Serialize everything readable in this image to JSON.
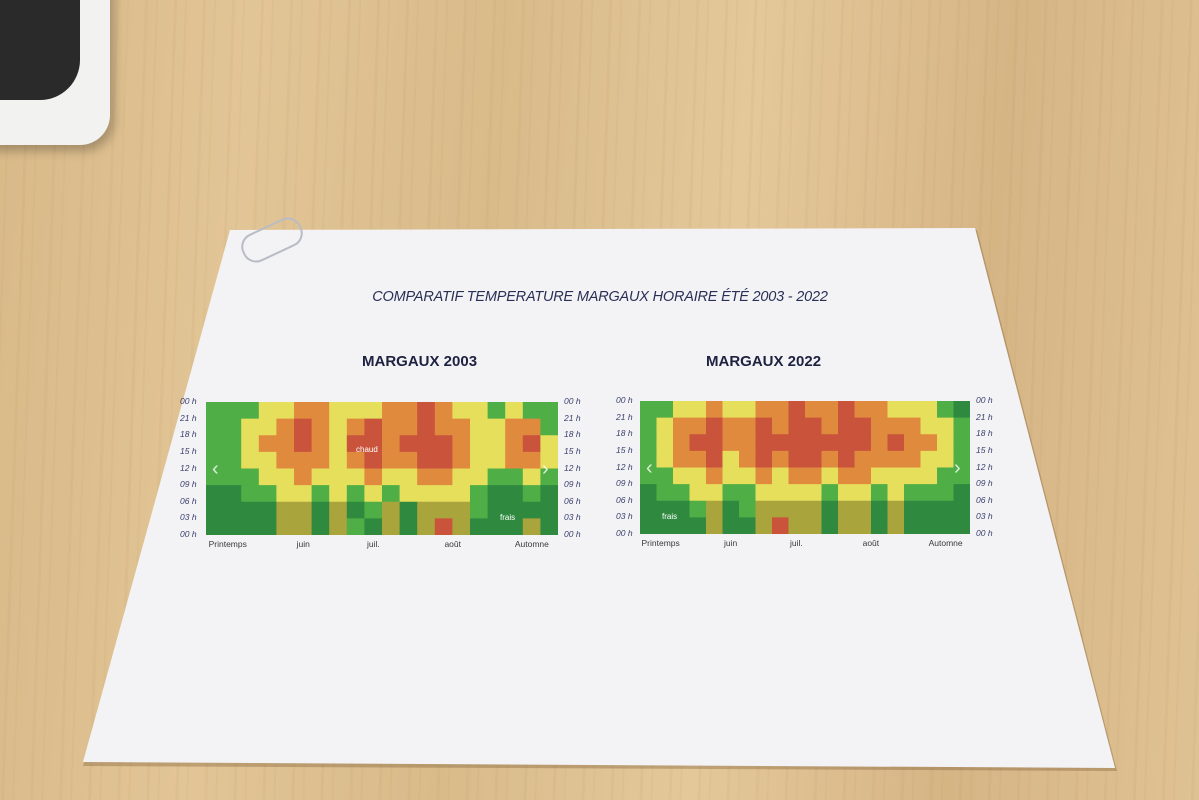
{
  "document": {
    "title": "COMPARATIF TEMPERATURE MARGAUX HORAIRE ÉTÉ 2003 - 2022"
  },
  "colors": {
    "class_0": "#2f8a3f",
    "class_1": "#4fae46",
    "class_2": "#a9a43c",
    "class_3": "#e6df5c",
    "class_4": "#e08a3e",
    "class_5": "#c9533b"
  },
  "chart_data": [
    {
      "type": "heatmap",
      "title": "MARGAUX 2003",
      "x_tick_labels": [
        "Printemps",
        "juin",
        "juil.",
        "août",
        "Automne"
      ],
      "y_tick_labels": [
        "00 h",
        "03 h",
        "06 h",
        "09 h",
        "12 h",
        "15 h",
        "18 h",
        "21 h",
        "00 h"
      ],
      "annotations": [
        "chaud",
        "frais"
      ],
      "rows_top_to_bottom": [
        [
          1,
          1,
          1,
          3,
          3,
          4,
          4,
          3,
          3,
          3,
          4,
          4,
          5,
          4,
          3,
          3,
          1,
          3,
          1,
          1
        ],
        [
          1,
          1,
          3,
          3,
          4,
          5,
          4,
          3,
          4,
          5,
          4,
          4,
          5,
          4,
          4,
          3,
          3,
          4,
          4,
          1
        ],
        [
          1,
          1,
          3,
          4,
          4,
          5,
          4,
          3,
          5,
          5,
          4,
          5,
          5,
          5,
          4,
          3,
          3,
          4,
          5,
          3
        ],
        [
          1,
          1,
          3,
          3,
          4,
          4,
          4,
          3,
          4,
          5,
          4,
          4,
          5,
          5,
          4,
          3,
          3,
          4,
          4,
          3
        ],
        [
          1,
          1,
          1,
          3,
          3,
          4,
          3,
          3,
          3,
          4,
          3,
          3,
          4,
          4,
          3,
          3,
          1,
          1,
          3,
          1
        ],
        [
          0,
          0,
          1,
          1,
          3,
          3,
          1,
          3,
          1,
          3,
          1,
          3,
          3,
          3,
          3,
          1,
          0,
          0,
          1,
          0
        ],
        [
          0,
          0,
          0,
          0,
          2,
          2,
          0,
          2,
          0,
          1,
          2,
          0,
          2,
          2,
          2,
          1,
          0,
          0,
          0,
          0
        ],
        [
          0,
          0,
          0,
          0,
          2,
          2,
          0,
          2,
          1,
          0,
          2,
          0,
          2,
          5,
          2,
          0,
          0,
          0,
          2,
          0
        ]
      ]
    },
    {
      "type": "heatmap",
      "title": "MARGAUX 2022",
      "x_tick_labels": [
        "Printemps",
        "juin",
        "juil.",
        "août",
        "Automne"
      ],
      "y_tick_labels": [
        "00 h",
        "03 h",
        "06 h",
        "09 h",
        "12 h",
        "15 h",
        "18 h",
        "21 h",
        "00 h"
      ],
      "annotations": [
        "frais"
      ],
      "rows_top_to_bottom": [
        [
          1,
          1,
          3,
          3,
          4,
          3,
          3,
          4,
          4,
          5,
          4,
          4,
          5,
          4,
          4,
          3,
          3,
          3,
          1,
          0
        ],
        [
          1,
          3,
          4,
          4,
          5,
          4,
          4,
          5,
          4,
          5,
          5,
          4,
          5,
          5,
          4,
          4,
          4,
          3,
          3,
          1
        ],
        [
          1,
          3,
          4,
          5,
          5,
          4,
          4,
          5,
          5,
          5,
          5,
          5,
          5,
          5,
          4,
          5,
          4,
          4,
          3,
          1
        ],
        [
          1,
          3,
          4,
          4,
          5,
          3,
          4,
          5,
          4,
          5,
          5,
          4,
          5,
          4,
          4,
          4,
          4,
          3,
          3,
          1
        ],
        [
          1,
          1,
          3,
          3,
          4,
          3,
          3,
          4,
          3,
          4,
          4,
          3,
          4,
          4,
          3,
          3,
          3,
          3,
          1,
          1
        ],
        [
          0,
          1,
          1,
          3,
          3,
          1,
          1,
          3,
          3,
          3,
          3,
          1,
          3,
          3,
          1,
          3,
          1,
          1,
          1,
          0
        ],
        [
          0,
          0,
          0,
          1,
          2,
          0,
          1,
          2,
          2,
          2,
          2,
          0,
          2,
          2,
          0,
          2,
          0,
          0,
          0,
          0
        ],
        [
          0,
          0,
          0,
          0,
          2,
          0,
          0,
          2,
          5,
          2,
          2,
          0,
          2,
          2,
          0,
          2,
          0,
          0,
          0,
          0
        ]
      ]
    }
  ]
}
